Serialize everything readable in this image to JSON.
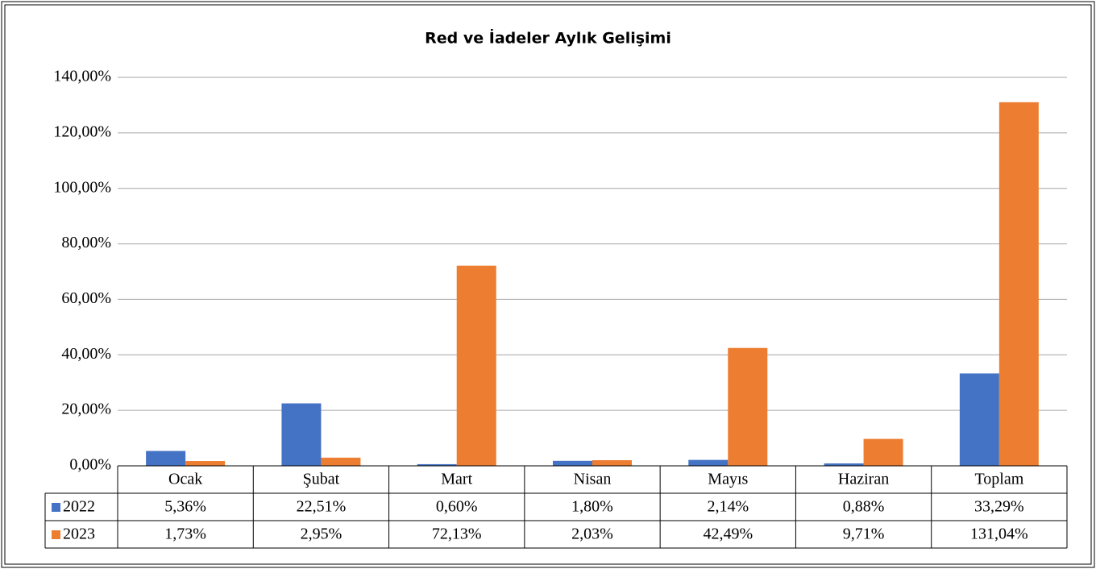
{
  "chart_data": {
    "type": "bar",
    "title": "Red ve İadeler Aylık Gelişimi",
    "categories": [
      "Ocak",
      "Şubat",
      "Mart",
      "Nisan",
      "Mayıs",
      "Haziran",
      "Toplam"
    ],
    "series": [
      {
        "name": "2022",
        "color": "#4472c4",
        "values": [
          5.36,
          22.51,
          0.6,
          1.8,
          2.14,
          0.88,
          33.29
        ],
        "value_labels": [
          "5,36%",
          "22,51%",
          "0,60%",
          "1,80%",
          "2,14%",
          "0,88%",
          "33,29%"
        ]
      },
      {
        "name": "2023",
        "color": "#ed7d31",
        "values": [
          1.73,
          2.95,
          72.13,
          2.03,
          42.49,
          9.71,
          131.04
        ],
        "value_labels": [
          "1,73%",
          "2,95%",
          "72,13%",
          "2,03%",
          "42,49%",
          "9,71%",
          "131,04%"
        ]
      }
    ],
    "ylim": [
      0,
      140
    ],
    "yticks": [
      {
        "value": 0,
        "label": "0,00%"
      },
      {
        "value": 20,
        "label": "20,00%"
      },
      {
        "value": 40,
        "label": "40,00%"
      },
      {
        "value": 60,
        "label": "60,00%"
      },
      {
        "value": 80,
        "label": "80,00%"
      },
      {
        "value": 100,
        "label": "100,00%"
      },
      {
        "value": 120,
        "label": "120,00%"
      },
      {
        "value": 140,
        "label": "140,00%"
      }
    ],
    "grid": true
  }
}
